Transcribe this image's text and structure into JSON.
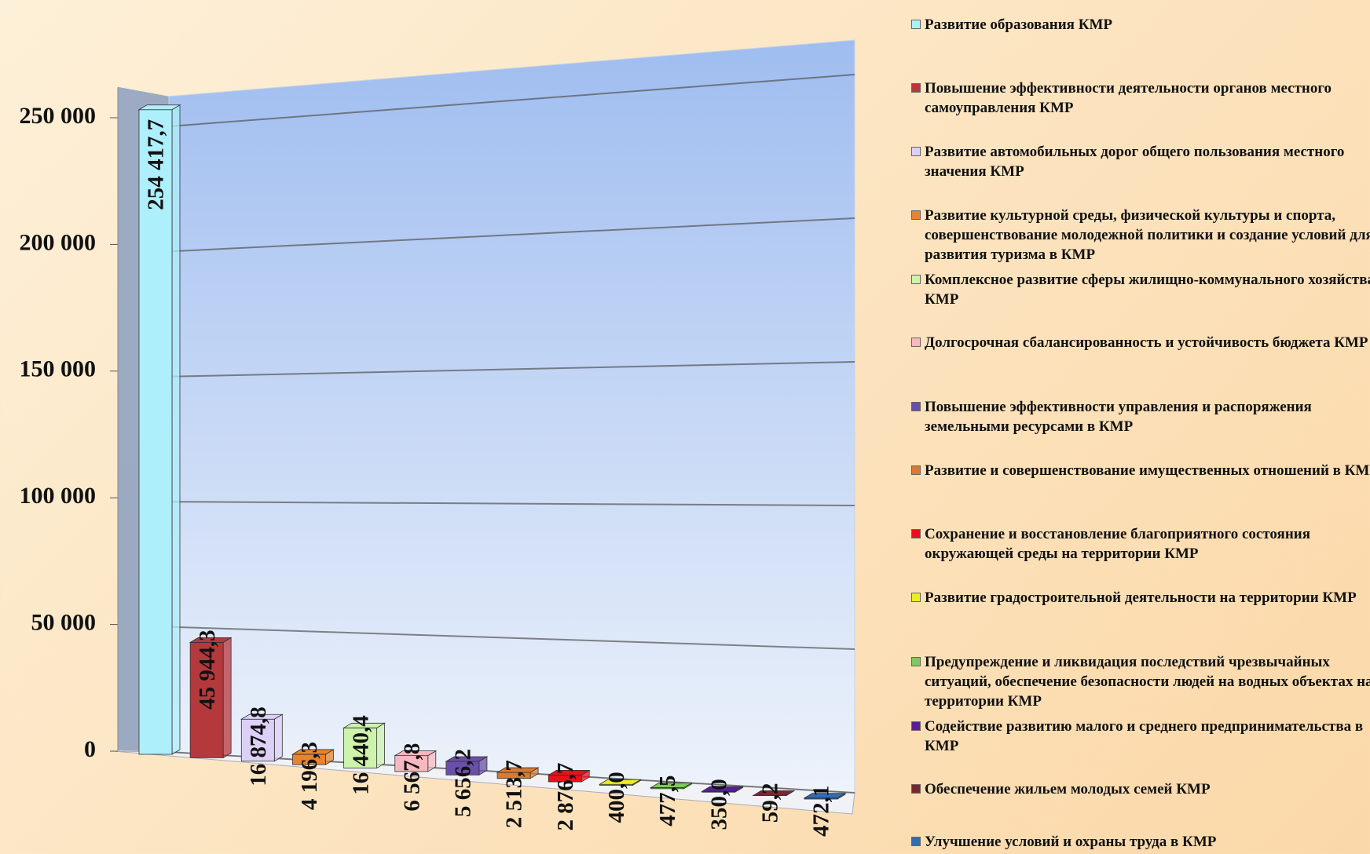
{
  "chart_data": {
    "type": "bar3d",
    "categories": [
      "Развитие образования КМР",
      "Повышение эффективности деятельности органов местного самоуправления КМР",
      "Развитие автомобильных дорог общего пользования местного значения КМР",
      "Развитие культурной среды, физической культуры и спорта, совершенствование молодежной политики и создание условий для развития туризма в КМР",
      "Комплексное развитие сферы жилищно-коммунального хозяйства КМР",
      "Долгосрочная сбалансированность и устойчивость бюджета КМР",
      "Повышение эффективности управления и распоряжения земельными ресурсами в КМР",
      "Развитие и совершенствование имущественных отношений в КМР",
      "Сохранение и восстановление благоприятного состояния окружающей среды на территории КМР",
      "Развитие градостроительной деятельности на территории КМР",
      "Предупреждение и ликвидация последствий чрезвычайных ситуаций, обеспечение безопасности людей на водных объектах на территории КМР",
      "Содействие развитию малого и среднего предпринимательства в КМР",
      "Обеспечение жильем молодых семей КМР",
      "Улучшение условий и охраны труда в КМР"
    ],
    "values": [
      254417.7,
      45944.3,
      16874.8,
      4196.3,
      16440.4,
      6567.8,
      5656.2,
      2513.7,
      2876.7,
      400.0,
      477.5,
      350.0,
      59.2,
      472.1
    ],
    "value_labels": [
      "254 417,7",
      "45 944,3",
      "16 874,8",
      "4 196,3",
      "16 440,4",
      "6 567,8",
      "5 656,2",
      "2 513,7",
      "2 876,7",
      "400,0",
      "477,5",
      "350,0",
      "59,2",
      "472,1"
    ],
    "colors": [
      "#aeeffc",
      "#b5383c",
      "#dcd0f7",
      "#e8832e",
      "#cdf3ad",
      "#f8b8c0",
      "#6a4fa8",
      "#d97a2e",
      "#e8101a",
      "#eeec22",
      "#7fc85a",
      "#5a1d9a",
      "#7a2830",
      "#2e6db0"
    ],
    "ylim": [
      0,
      262000
    ],
    "yticks": [
      {
        "value": 0,
        "label": "0"
      },
      {
        "value": 50000,
        "label": "50 000"
      },
      {
        "value": 100000,
        "label": "100 000"
      },
      {
        "value": 150000,
        "label": "150 000"
      },
      {
        "value": 200000,
        "label": "200 000"
      },
      {
        "value": 250000,
        "label": "250 000"
      }
    ],
    "grid": true,
    "legend": "right"
  }
}
